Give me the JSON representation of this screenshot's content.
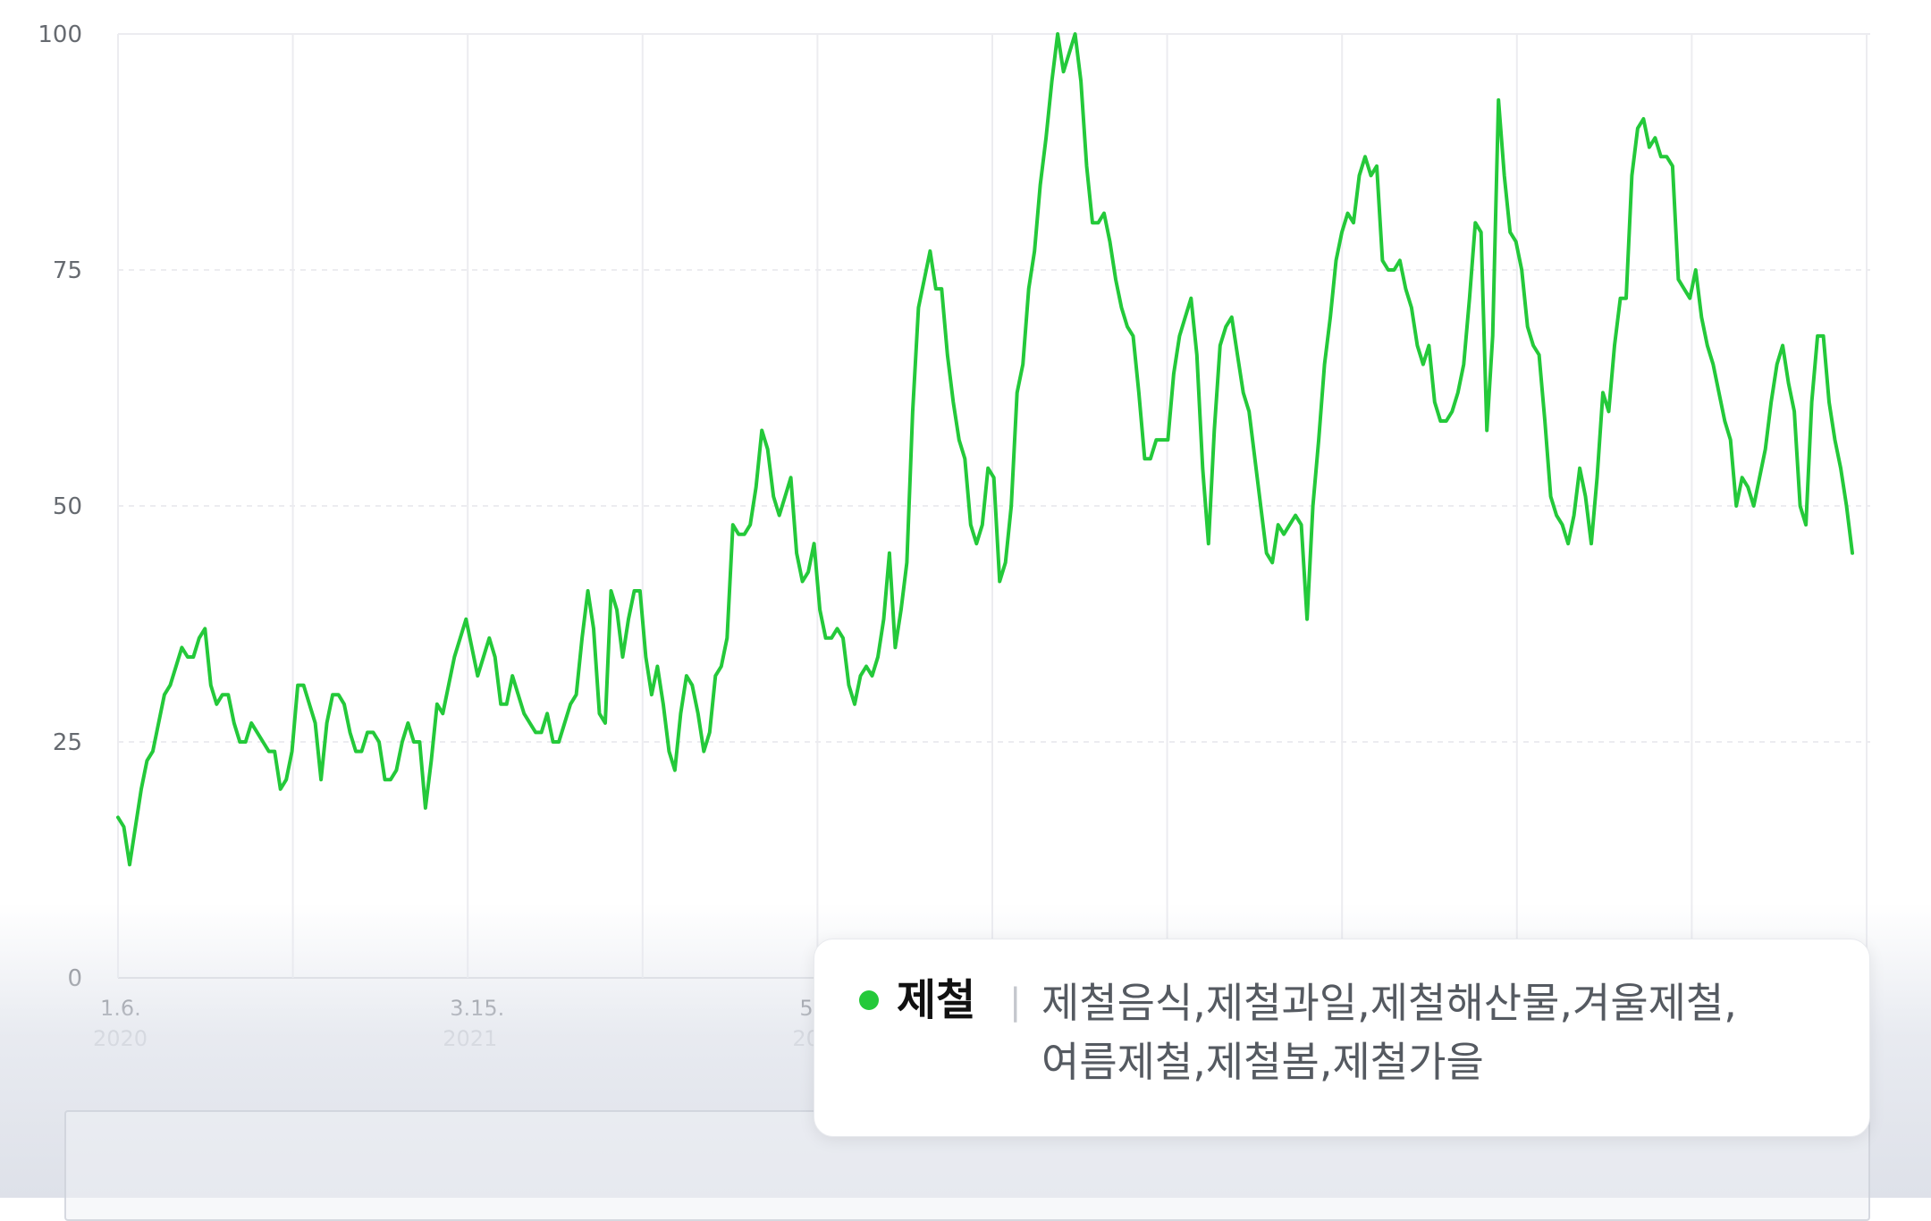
{
  "chart_data": {
    "type": "line",
    "ylim": [
      0,
      100
    ],
    "y_ticks": [
      "0",
      "25",
      "50",
      "75",
      "100"
    ],
    "x_ticks": [
      {
        "label": "1.6.",
        "year": "2020"
      },
      {
        "label": "3.15.",
        "year": "2021"
      },
      {
        "label": "5.",
        "year": "20"
      }
    ],
    "grid": true,
    "series": [
      {
        "color": "#24c93a",
        "values": [
          17,
          16,
          12,
          16,
          20,
          23,
          24,
          27,
          30,
          31,
          33,
          35,
          34,
          34,
          36,
          37,
          31,
          29,
          30,
          30,
          27,
          25,
          25,
          27,
          26,
          25,
          24,
          24,
          20,
          21,
          24,
          31,
          31,
          29,
          27,
          21,
          27,
          30,
          30,
          29,
          26,
          24,
          24,
          26,
          26,
          25,
          21,
          21,
          22,
          25,
          27,
          25,
          25,
          18,
          23,
          29,
          28,
          31,
          34,
          36,
          38,
          35,
          32,
          34,
          36,
          34,
          29,
          29,
          32,
          30,
          28,
          27,
          26,
          26,
          28,
          25,
          25,
          27,
          29,
          30,
          36,
          41,
          37,
          28,
          27,
          41,
          39,
          34,
          38,
          41,
          41,
          34,
          30,
          33,
          29,
          24,
          22,
          28,
          32,
          31,
          28,
          24,
          26,
          32,
          33,
          36,
          48,
          47,
          47,
          48,
          52,
          58,
          56,
          51,
          49,
          51,
          53,
          45,
          42,
          43,
          46,
          39,
          36,
          36,
          37,
          36,
          31,
          29,
          32,
          33,
          32,
          34,
          38,
          45,
          35,
          39,
          44,
          60,
          71,
          74,
          77,
          73,
          73,
          66,
          61,
          57,
          55,
          48,
          46,
          48,
          54,
          53,
          42,
          44,
          50,
          62,
          65,
          73,
          77,
          84,
          89,
          95,
          100,
          96,
          98,
          100,
          95,
          86,
          80,
          80,
          81,
          78,
          74,
          71,
          69,
          68,
          62,
          55,
          55,
          57,
          57,
          57,
          64,
          68,
          70,
          72,
          66,
          54,
          46,
          58,
          67,
          69,
          70,
          66,
          62,
          60,
          55,
          50,
          45,
          44,
          48,
          47,
          48,
          49,
          48,
          38,
          50,
          57,
          65,
          70,
          76,
          79,
          81,
          80,
          85,
          87,
          85,
          86,
          76,
          75,
          75,
          76,
          73,
          71,
          67,
          65,
          67,
          61,
          59,
          59,
          60,
          62,
          65,
          72,
          80,
          79,
          58,
          68,
          93,
          85,
          79,
          78,
          75,
          69,
          67,
          66,
          59,
          51,
          49,
          48,
          46,
          49,
          54,
          51,
          46,
          53,
          62,
          60,
          67,
          72,
          72,
          85,
          90,
          91,
          88,
          89,
          87,
          87,
          86,
          74,
          73,
          72,
          75,
          70,
          67,
          65,
          62,
          59,
          57,
          50,
          53,
          52,
          50,
          53,
          56,
          61,
          65,
          67,
          63,
          60,
          50,
          48,
          61,
          68,
          68,
          61,
          57,
          54,
          50,
          45
        ]
      }
    ],
    "tooltip": {
      "term": "제철",
      "related": "제철음식,제철과일,제철해산물,겨울제철,여름제철,제철봄,제철가을"
    }
  }
}
